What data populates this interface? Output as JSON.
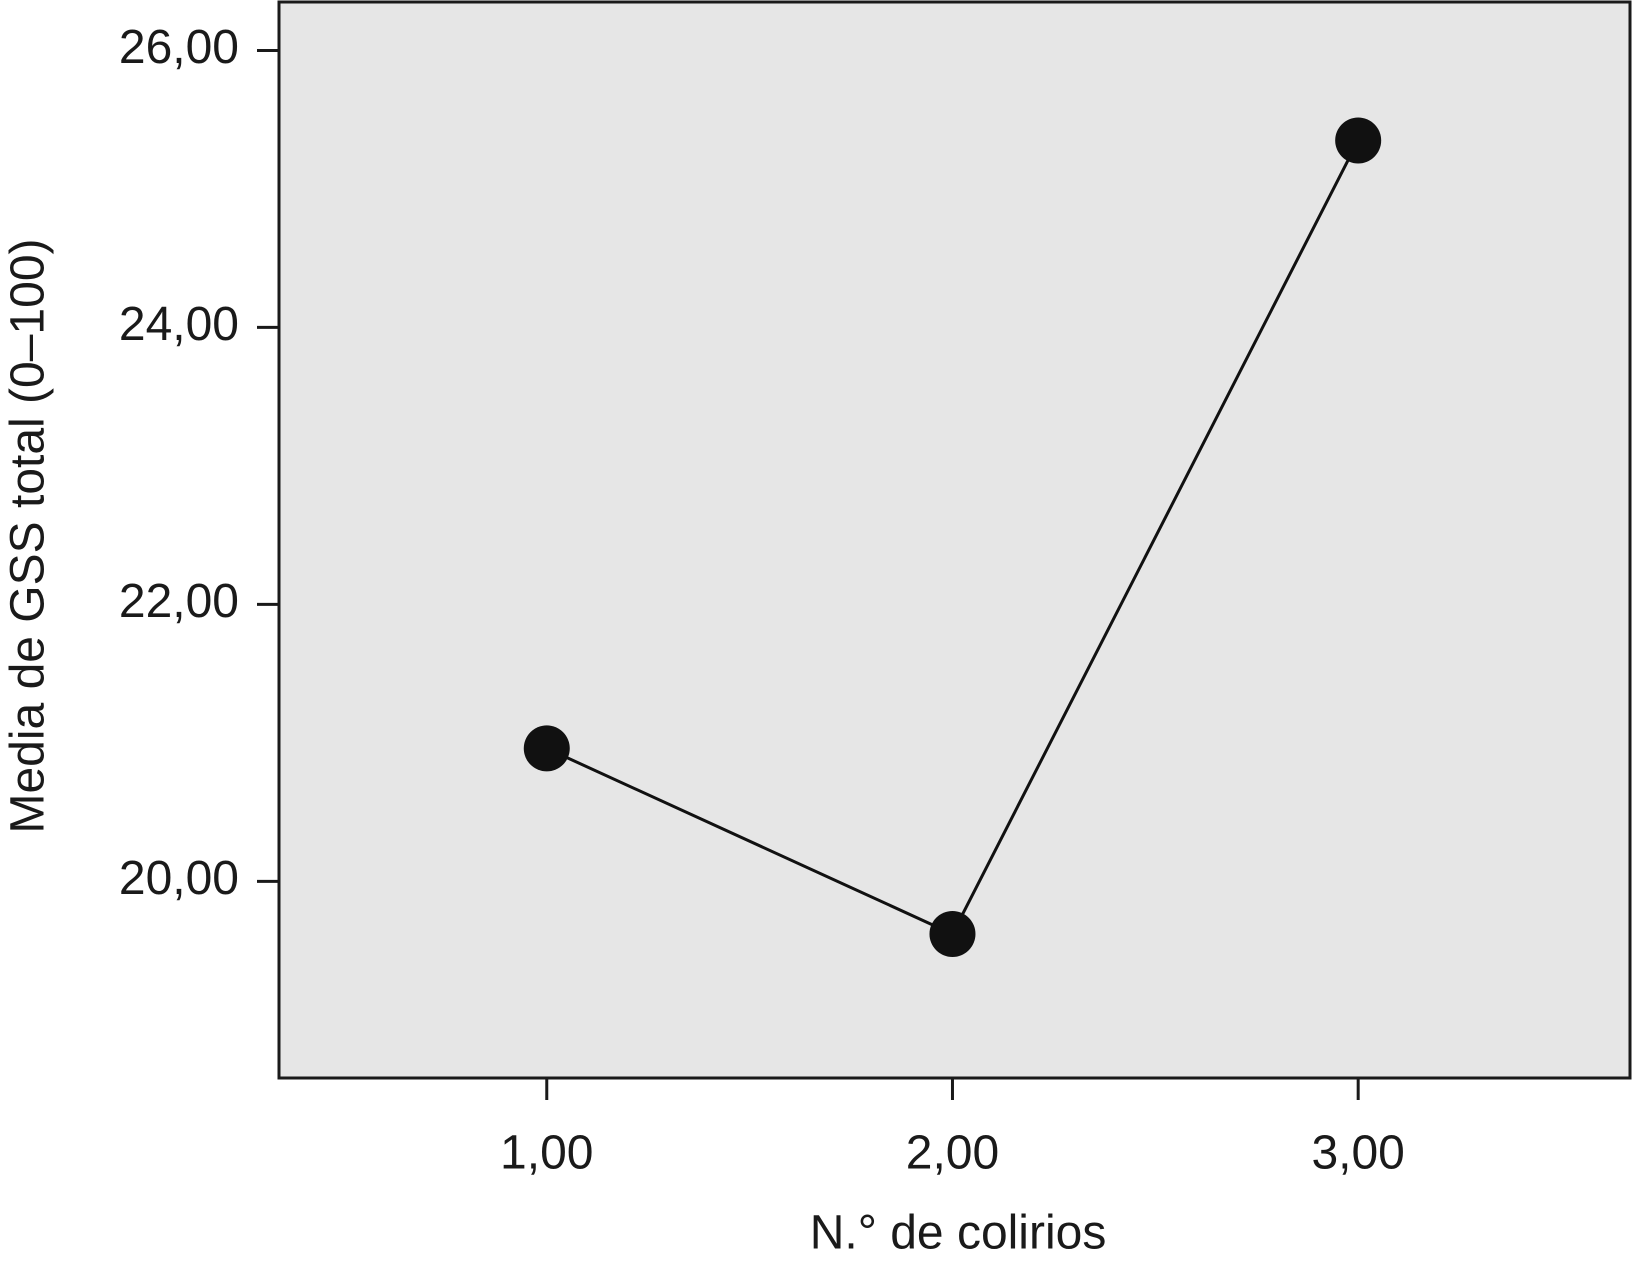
{
  "chart_data": {
    "type": "line",
    "x_label": "N.° de colirios",
    "y_label": "Media de GSS total (0–100)",
    "x": [
      1,
      2,
      3
    ],
    "series": [
      {
        "color": "#111111",
        "values": [
          20.96,
          19.62,
          25.35
        ]
      }
    ],
    "xlim": [
      0.34,
      3.67
    ],
    "ylim": [
      18.58,
      26.35
    ],
    "xticks": [
      {
        "value": 1,
        "label": "1,00"
      },
      {
        "value": 2,
        "label": "2,00"
      },
      {
        "value": 3,
        "label": "3,00"
      }
    ],
    "yticks": [
      {
        "value": 20,
        "label": "20,00"
      },
      {
        "value": 22,
        "label": "22,00"
      },
      {
        "value": 24,
        "label": "24,00"
      },
      {
        "value": 26,
        "label": "26,00"
      }
    ],
    "background": "#e6e6e6"
  }
}
